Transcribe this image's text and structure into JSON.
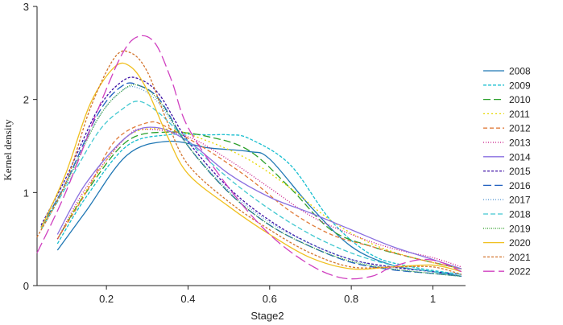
{
  "chart_data": {
    "type": "line",
    "title": "",
    "xlabel": "Stage2",
    "ylabel": "Kernel density",
    "xlim": [
      0.03,
      1.08
    ],
    "ylim": [
      0,
      3
    ],
    "xticks": [
      0.2,
      0.4,
      0.6,
      0.8,
      1
    ],
    "xtick_labels": [
      "0.2",
      "0.4",
      "0.6",
      "0.8",
      "1"
    ],
    "yticks": [
      0,
      1,
      2,
      3
    ],
    "ytick_labels": [
      "0",
      "1",
      "2",
      "3"
    ],
    "grid": false,
    "legend_position": "right",
    "series": [
      {
        "name": "2008",
        "color": "#1f77b4",
        "dash": "",
        "x": [
          0.08,
          0.15,
          0.25,
          0.35,
          0.45,
          0.55,
          0.6,
          0.7,
          0.8,
          0.9,
          1.0,
          1.07
        ],
        "y": [
          0.38,
          0.8,
          1.4,
          1.55,
          1.48,
          1.44,
          1.36,
          0.85,
          0.42,
          0.22,
          0.15,
          0.1
        ]
      },
      {
        "name": "2009",
        "color": "#17becf",
        "dash": "4,2",
        "x": [
          0.08,
          0.15,
          0.25,
          0.35,
          0.45,
          0.5,
          0.55,
          0.65,
          0.75,
          0.85,
          0.95,
          1.07
        ],
        "y": [
          0.45,
          0.95,
          1.5,
          1.62,
          1.62,
          1.62,
          1.58,
          1.3,
          0.7,
          0.33,
          0.2,
          0.12
        ]
      },
      {
        "name": "2010",
        "color": "#2ca02c",
        "dash": "9,4",
        "x": [
          0.08,
          0.15,
          0.25,
          0.35,
          0.45,
          0.55,
          0.65,
          0.75,
          0.85,
          0.95,
          1.07
        ],
        "y": [
          0.5,
          1.0,
          1.55,
          1.65,
          1.6,
          1.45,
          1.05,
          0.6,
          0.42,
          0.3,
          0.18
        ]
      },
      {
        "name": "2011",
        "color": "#e6d800",
        "dash": "2,3",
        "x": [
          0.08,
          0.15,
          0.25,
          0.35,
          0.45,
          0.55,
          0.65,
          0.75,
          0.85,
          0.95,
          1.07
        ],
        "y": [
          0.5,
          1.02,
          1.6,
          1.68,
          1.55,
          1.35,
          1.05,
          0.7,
          0.45,
          0.3,
          0.18
        ]
      },
      {
        "name": "2012",
        "color": "#e07b39",
        "dash": "5,3",
        "x": [
          0.08,
          0.15,
          0.22,
          0.3,
          0.35,
          0.45,
          0.55,
          0.65,
          0.75,
          0.85,
          0.95,
          1.07
        ],
        "y": [
          0.5,
          1.0,
          1.55,
          1.75,
          1.7,
          1.45,
          1.15,
          0.8,
          0.55,
          0.42,
          0.3,
          0.18
        ]
      },
      {
        "name": "2013",
        "color": "#c71585",
        "dash": "1,2",
        "x": [
          0.08,
          0.15,
          0.25,
          0.3,
          0.4,
          0.5,
          0.6,
          0.7,
          0.8,
          0.9,
          1.0,
          1.07
        ],
        "y": [
          0.5,
          1.05,
          1.6,
          1.68,
          1.6,
          1.35,
          1.05,
          0.75,
          0.55,
          0.4,
          0.3,
          0.2
        ]
      },
      {
        "name": "2014",
        "color": "#8a6fe0",
        "dash": "",
        "x": [
          0.08,
          0.15,
          0.25,
          0.32,
          0.4,
          0.5,
          0.6,
          0.7,
          0.8,
          0.9,
          1.0,
          1.07
        ],
        "y": [
          0.55,
          1.1,
          1.6,
          1.7,
          1.55,
          1.2,
          0.95,
          0.78,
          0.6,
          0.42,
          0.28,
          0.18
        ]
      },
      {
        "name": "2015",
        "color": "#3a0ca3",
        "dash": "3,2",
        "x": [
          0.04,
          0.1,
          0.18,
          0.24,
          0.28,
          0.33,
          0.4,
          0.5,
          0.6,
          0.7,
          0.8,
          0.9,
          1.0,
          1.07
        ],
        "y": [
          0.65,
          1.15,
          1.9,
          2.2,
          2.22,
          2.05,
          1.55,
          1.05,
          0.7,
          0.45,
          0.28,
          0.2,
          0.15,
          0.12
        ]
      },
      {
        "name": "2016",
        "color": "#1f5fbf",
        "dash": "10,4",
        "x": [
          0.04,
          0.1,
          0.18,
          0.24,
          0.28,
          0.33,
          0.4,
          0.5,
          0.6,
          0.7,
          0.8,
          0.9,
          1.0,
          1.07
        ],
        "y": [
          0.63,
          1.1,
          1.85,
          2.15,
          2.15,
          2.0,
          1.5,
          1.0,
          0.65,
          0.42,
          0.25,
          0.17,
          0.13,
          0.1
        ]
      },
      {
        "name": "2017",
        "color": "#5d9cd6",
        "dash": "1,2",
        "x": [
          0.04,
          0.1,
          0.18,
          0.24,
          0.28,
          0.33,
          0.4,
          0.5,
          0.6,
          0.7,
          0.8,
          0.9,
          1.0,
          1.07
        ],
        "y": [
          0.62,
          1.1,
          1.8,
          2.1,
          2.12,
          1.95,
          1.5,
          1.02,
          0.68,
          0.45,
          0.28,
          0.18,
          0.13,
          0.1
        ]
      },
      {
        "name": "2018",
        "color": "#40c8d0",
        "dash": "6,3",
        "x": [
          0.04,
          0.1,
          0.18,
          0.24,
          0.28,
          0.33,
          0.4,
          0.5,
          0.6,
          0.7,
          0.8,
          0.9,
          1.0,
          1.07
        ],
        "y": [
          0.6,
          1.05,
          1.65,
          1.9,
          1.98,
          1.85,
          1.55,
          1.15,
          0.82,
          0.55,
          0.35,
          0.22,
          0.15,
          0.12
        ]
      },
      {
        "name": "2019",
        "color": "#33a02c",
        "dash": "1,1.5",
        "x": [
          0.04,
          0.1,
          0.18,
          0.24,
          0.28,
          0.33,
          0.4,
          0.5,
          0.6,
          0.7,
          0.8,
          0.9,
          1.0,
          1.07
        ],
        "y": [
          0.62,
          1.08,
          1.8,
          2.1,
          2.15,
          1.98,
          1.5,
          1.0,
          0.65,
          0.42,
          0.26,
          0.18,
          0.13,
          0.1
        ]
      },
      {
        "name": "2020",
        "color": "#f0c020",
        "dash": "",
        "x": [
          0.04,
          0.1,
          0.16,
          0.22,
          0.26,
          0.3,
          0.35,
          0.4,
          0.5,
          0.6,
          0.7,
          0.8,
          0.9,
          1.0,
          1.07
        ],
        "y": [
          0.62,
          1.2,
          1.95,
          2.35,
          2.35,
          2.1,
          1.6,
          1.2,
          0.85,
          0.55,
          0.3,
          0.18,
          0.2,
          0.22,
          0.15
        ]
      },
      {
        "name": "2021",
        "color": "#d2742d",
        "dash": "3,2",
        "x": [
          0.03,
          0.1,
          0.16,
          0.22,
          0.26,
          0.3,
          0.35,
          0.4,
          0.5,
          0.6,
          0.7,
          0.8,
          0.9,
          1.0,
          1.07
        ],
        "y": [
          0.52,
          1.1,
          1.9,
          2.45,
          2.5,
          2.3,
          1.75,
          1.3,
          0.9,
          0.6,
          0.35,
          0.2,
          0.2,
          0.2,
          0.12
        ]
      },
      {
        "name": "2022",
        "color": "#d040c0",
        "dash": "14,5",
        "x": [
          0.03,
          0.1,
          0.18,
          0.24,
          0.28,
          0.32,
          0.36,
          0.4,
          0.5,
          0.6,
          0.7,
          0.78,
          0.85,
          0.9,
          0.97,
          1.02,
          1.07
        ],
        "y": [
          0.35,
          1.0,
          1.9,
          2.5,
          2.68,
          2.6,
          2.2,
          1.7,
          1.05,
          0.55,
          0.22,
          0.08,
          0.1,
          0.2,
          0.28,
          0.25,
          0.15
        ]
      }
    ]
  }
}
